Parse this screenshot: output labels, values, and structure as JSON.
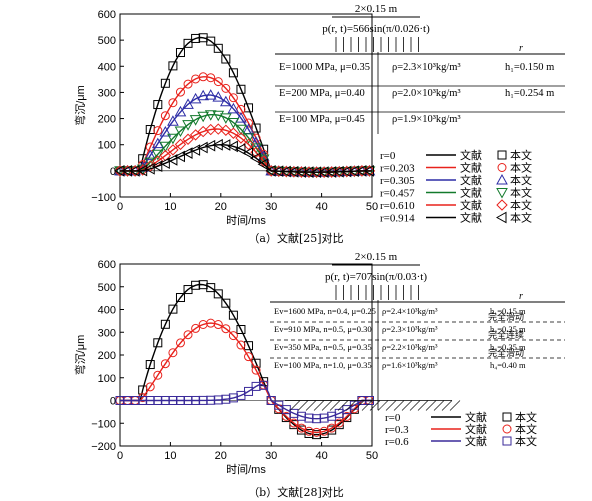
{
  "chart_data": [
    {
      "type": "line",
      "caption": "（a）文献[25]对比",
      "xlabel": "时间/ms",
      "ylabel": "弯沉/μm",
      "xlim": [
        0,
        50
      ],
      "ylim": [
        -100,
        600
      ],
      "xticks": [
        "0",
        "10",
        "20",
        "30",
        "40",
        "50"
      ],
      "yticks": [
        "−100",
        "0",
        "100",
        "200",
        "300",
        "400",
        "500",
        "600"
      ],
      "grid": false,
      "load_text": {
        "width": "2×0.15 m",
        "formula": "p(r, t)=566sin(π/0.026·t)",
        "r_axis": "r",
        "layers": [
          {
            "E": "E=1000 MPa, μ=0.35",
            "rho": "ρ=2.3×10³kg/m³",
            "h": "h₁=0.150 m"
          },
          {
            "E": "E=200 MPa, μ=0.40",
            "rho": "ρ=2.0×10³kg/m³",
            "h": "h₁=0.254 m"
          },
          {
            "E": "E=100 MPa, μ=0.45",
            "rho": "ρ=1.9×10³kg/m³",
            "h": ""
          }
        ]
      },
      "legend_line_label": "文献",
      "legend_marker_label": "本文",
      "series": [
        {
          "name": "r=0",
          "color": "#000000",
          "marker": "square",
          "peak": 510,
          "trough": -5
        },
        {
          "name": "r=0.203",
          "color": "#e8221c",
          "marker": "circle",
          "peak": 360,
          "trough": -5
        },
        {
          "name": "r=0.305",
          "color": "#2d2da6",
          "marker": "triangle-up",
          "peak": 290,
          "trough": -5
        },
        {
          "name": "r=0.457",
          "color": "#137a2c",
          "marker": "triangle-down",
          "peak": 215,
          "trough": -5
        },
        {
          "name": "r=0.610",
          "color": "#e8221c",
          "marker": "diamond",
          "peak": 160,
          "trough": -5
        },
        {
          "name": "r=0.914",
          "color": "#000000",
          "marker": "triangle-left",
          "peak": 100,
          "trough": -5
        }
      ]
    },
    {
      "type": "line",
      "caption": "（b）文献[28]对比",
      "xlabel": "时间/ms",
      "ylabel": "弯沉/μm",
      "xlim": [
        0,
        50
      ],
      "ylim": [
        -200,
        600
      ],
      "xticks": [
        "0",
        "10",
        "20",
        "30",
        "40",
        "50"
      ],
      "yticks": [
        "−200",
        "−100",
        "0",
        "100",
        "200",
        "300",
        "400",
        "500",
        "600"
      ],
      "grid": false,
      "load_text": {
        "width": "2×0.15 m",
        "formula": "p(r, t)=707sin(π/0.03·t)",
        "r_axis": "r",
        "layers": [
          {
            "E": "Ev=1600 MPa, n=0.4, μ=0.25",
            "rho": "ρ=2.4×10³kg/m³",
            "h": "h₁=0.15 m"
          },
          {
            "E": "Ev=910 MPa, n=0.5, μ=0.30",
            "rho": "ρ=2.3×10³kg/m³",
            "h": "h₂=0.35 m"
          },
          {
            "E": "Ev=350 MPa, n=0.5, μ=0.35",
            "rho": "ρ=2.2×10³kg/m³",
            "h": "h₃=0.35 m"
          },
          {
            "E": "Ev=100 MPa, n=1.0, μ=0.35",
            "rho": "ρ=1.6×10³kg/m³",
            "h": "h₄=0.40 m"
          }
        ],
        "interfaces": [
          "完全滑动",
          "完全连续",
          "完全滑动"
        ]
      },
      "legend_line_label": "文献",
      "legend_marker_label": "本文",
      "series": [
        {
          "name": "r=0",
          "color": "#000000",
          "marker": "square",
          "peak": 510,
          "trough": -150
        },
        {
          "name": "r=0.3",
          "color": "#e8221c",
          "marker": "circle",
          "peak": 340,
          "trough": -140
        },
        {
          "name": "r=0.6",
          "color": "#3a2a9a",
          "marker": "square",
          "peak": 70,
          "trough": -80
        }
      ]
    }
  ]
}
